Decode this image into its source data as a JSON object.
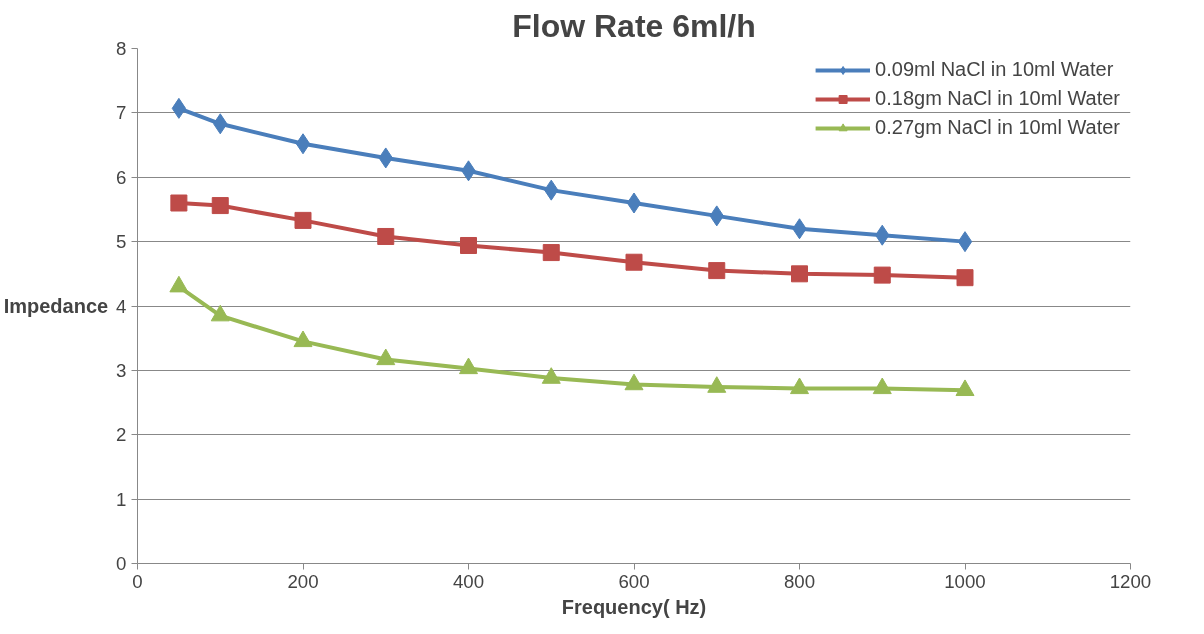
{
  "chart_data": {
    "type": "line",
    "title": "Flow Rate 6ml/h",
    "xlabel": "Frequency( Hz)",
    "ylabel": "Impedance",
    "x": [
      50,
      100,
      200,
      300,
      400,
      500,
      600,
      700,
      800,
      900,
      1000
    ],
    "series": [
      {
        "name": "0.09ml NaCl in 10ml Water",
        "color": "#4a7ebb",
        "marker": "diamond",
        "values": [
          7.07,
          6.83,
          6.52,
          6.3,
          6.1,
          5.8,
          5.6,
          5.4,
          5.2,
          5.1,
          5.0
        ]
      },
      {
        "name": "0.18gm NaCl in 10ml Water",
        "color": "#be4b48",
        "marker": "square",
        "values": [
          5.6,
          5.56,
          5.33,
          5.08,
          4.94,
          4.83,
          4.68,
          4.55,
          4.5,
          4.48,
          4.44
        ]
      },
      {
        "name": "0.27gm NaCl in 10ml Water",
        "color": "#98b954",
        "marker": "triangle",
        "values": [
          4.3,
          3.85,
          3.45,
          3.17,
          3.03,
          2.88,
          2.78,
          2.74,
          2.72,
          2.72,
          2.69
        ]
      }
    ],
    "xlim": [
      0,
      1200
    ],
    "xticks": [
      0,
      200,
      400,
      600,
      800,
      1000,
      1200
    ],
    "ylim": [
      0,
      8
    ],
    "yticks": [
      0,
      1,
      2,
      3,
      4,
      5,
      6,
      7,
      8
    ],
    "grid": "y",
    "legend": "top right",
    "line_style": "solid"
  }
}
